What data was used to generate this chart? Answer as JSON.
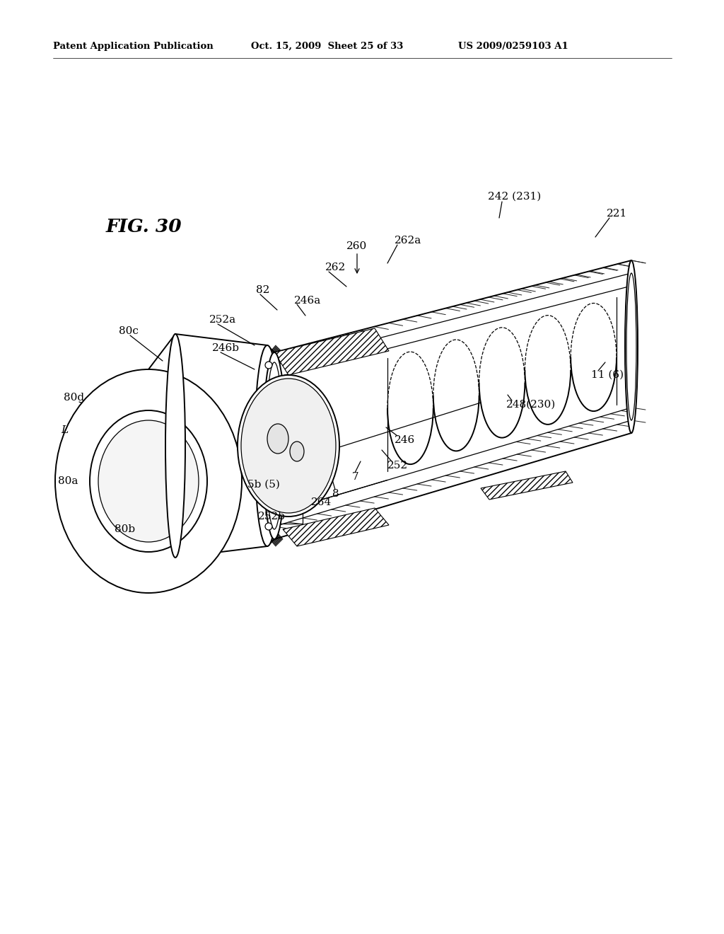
{
  "bg_color": "#ffffff",
  "line_color": "#000000",
  "header_left": "Patent Application Publication",
  "header_mid": "Oct. 15, 2009  Sheet 25 of 33",
  "header_right": "US 2009/0259103 A1",
  "fig_label": "FIG. 30"
}
